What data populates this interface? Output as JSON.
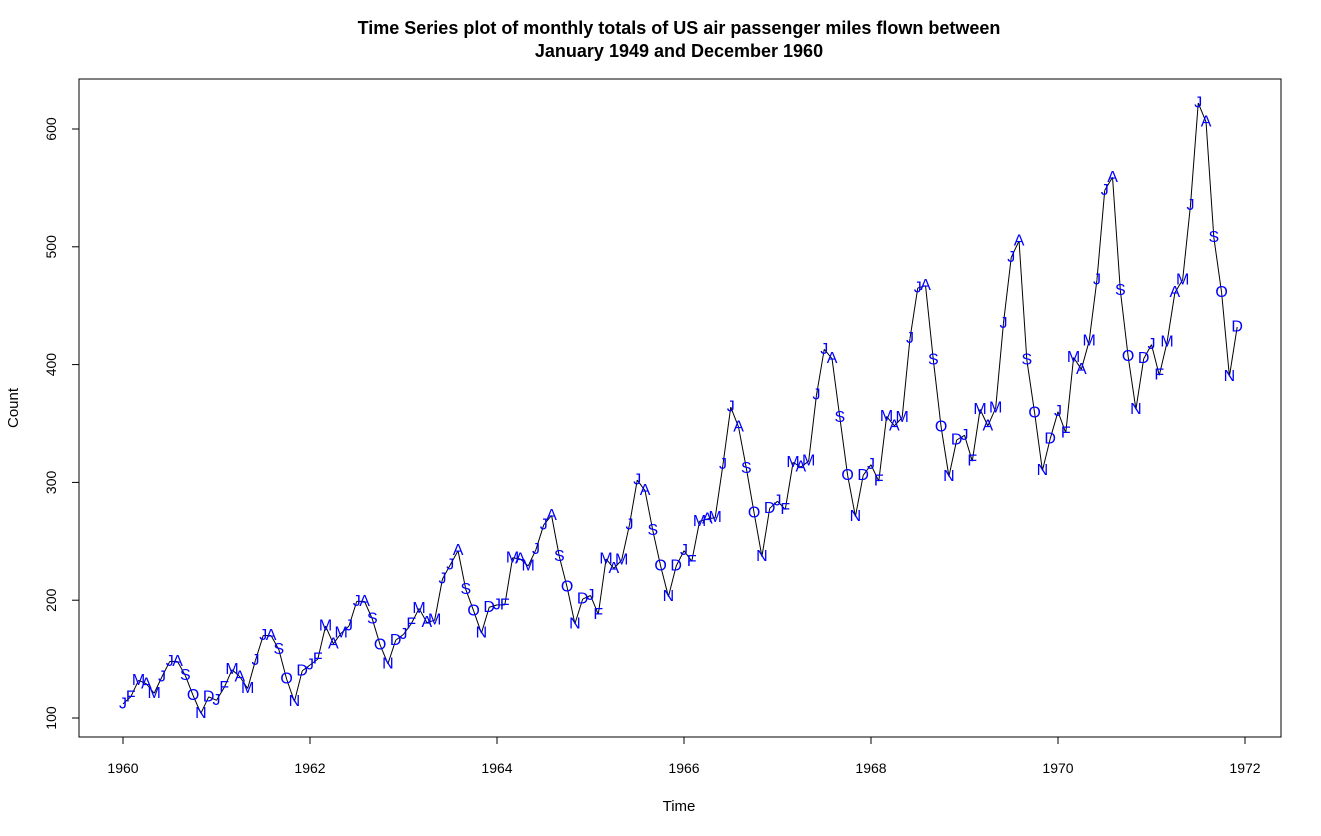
{
  "chart_data": {
    "type": "line",
    "title": [
      "Time Series plot of monthly totals of US air passenger miles flown between",
      "January 1949 and December 1960"
    ],
    "xlabel": "Time",
    "ylabel": "Count",
    "xlim": [
      1960,
      1972
    ],
    "ylim": [
      100,
      622
    ],
    "x_ticks": [
      "1960",
      "1962",
      "1964",
      "1966",
      "1968",
      "1970",
      "1972"
    ],
    "y_ticks": [
      "100",
      "200",
      "300",
      "400",
      "500",
      "600"
    ],
    "x_start": 1960,
    "x_step": 0.083333,
    "month_labels": [
      "J",
      "F",
      "M",
      "A",
      "M",
      "J",
      "J",
      "A",
      "S",
      "O",
      "N",
      "D"
    ],
    "values": [
      112,
      118,
      132,
      129,
      121,
      135,
      148,
      148,
      136,
      119,
      104,
      118,
      115,
      126,
      141,
      135,
      125,
      149,
      170,
      170,
      158,
      133,
      114,
      140,
      145,
      150,
      178,
      163,
      172,
      178,
      199,
      199,
      184,
      162,
      146,
      166,
      171,
      180,
      193,
      181,
      183,
      218,
      230,
      242,
      209,
      191,
      172,
      194,
      196,
      196,
      236,
      235,
      229,
      243,
      264,
      272,
      237,
      211,
      180,
      201,
      204,
      188,
      235,
      227,
      234,
      264,
      302,
      293,
      259,
      229,
      203,
      229,
      242,
      233,
      267,
      269,
      270,
      315,
      364,
      347,
      312,
      274,
      237,
      278,
      284,
      277,
      317,
      313,
      318,
      374,
      413,
      405,
      355,
      306,
      271,
      306,
      315,
      301,
      356,
      348,
      355,
      422,
      465,
      467,
      404,
      347,
      305,
      336,
      340,
      318,
      362,
      348,
      363,
      435,
      491,
      505,
      404,
      359,
      310,
      337,
      360,
      342,
      406,
      396,
      420,
      472,
      548,
      559,
      463,
      407,
      362,
      405,
      417,
      391,
      419,
      461,
      472,
      535,
      622,
      606,
      508,
      461,
      390,
      432
    ],
    "line_color": "#000000",
    "label_color": "#0000ff",
    "grid": false,
    "legend": "none"
  }
}
